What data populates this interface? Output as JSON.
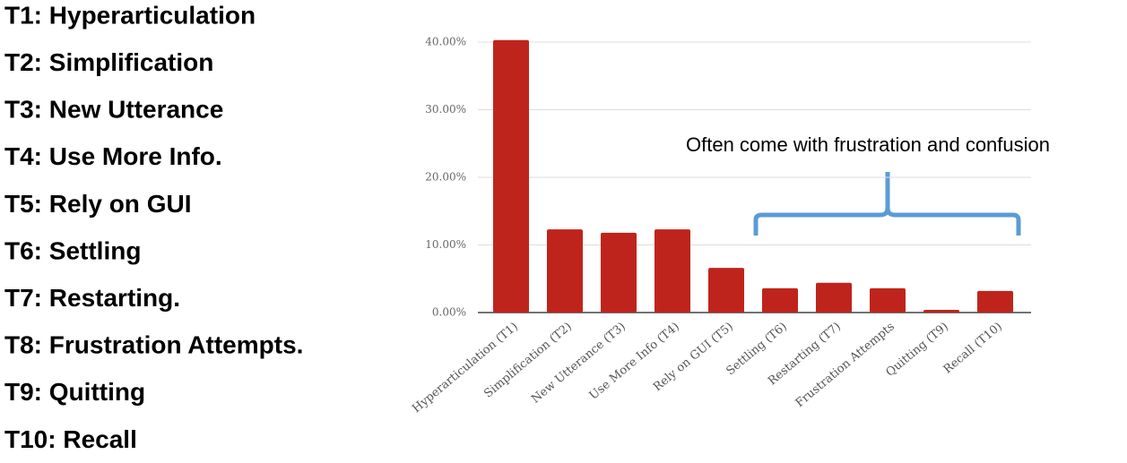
{
  "list": [
    "T1: Hyperarticulation",
    "T2: Simplification",
    "T3: New Utterance",
    "T4: Use More Info.",
    "T5: Rely on GUI",
    "T6: Settling",
    "T7: Restarting.",
    "T8: Frustration Attempts.",
    "T9: Quitting",
    "T10: Recall"
  ],
  "chart_data": {
    "type": "bar",
    "categories": [
      "Hyperarticulation (T1)",
      "Simplification (T2)",
      "New Utterance (T3)",
      "Use More Info (T4)",
      "Rely on GUI (T5)",
      "Settling (T6)",
      "Restarting (T7)",
      "Frustration Attempts",
      "Quitting (T9)",
      "Recall (T10)"
    ],
    "values": [
      40.3,
      12.3,
      11.8,
      12.3,
      6.6,
      3.6,
      4.4,
      3.6,
      0.4,
      3.2
    ],
    "color": "#bf241c",
    "ylim": [
      0,
      40
    ],
    "yticks": [
      {
        "value": 0,
        "label": "0.00%"
      },
      {
        "value": 10,
        "label": "10.00%"
      },
      {
        "value": 20,
        "label": "20.00%"
      },
      {
        "value": 30,
        "label": "30.00%"
      },
      {
        "value": 40,
        "label": "40.00%"
      }
    ],
    "grid": true,
    "annotation": "Often come with frustration and confusion"
  }
}
